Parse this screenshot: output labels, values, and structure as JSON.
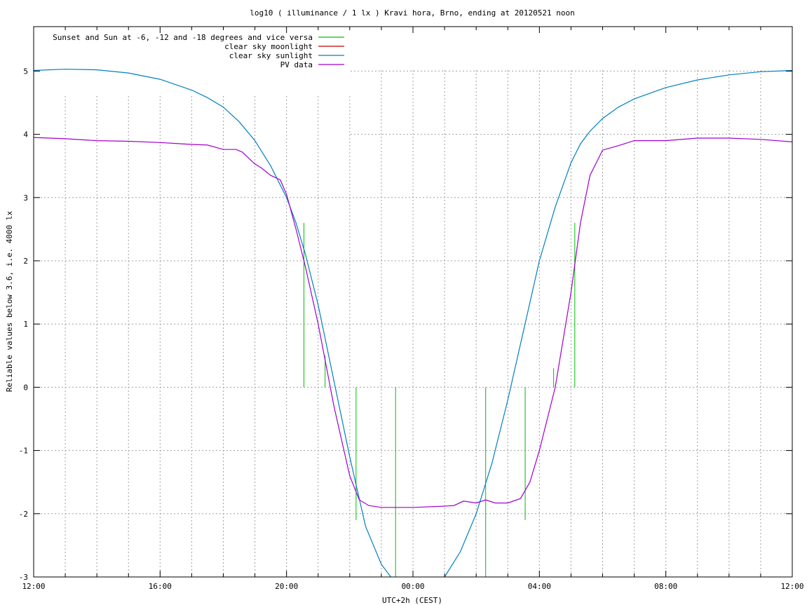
{
  "chart_data": {
    "type": "line",
    "title": "log10 ( illuminance / 1 lx ) Kravi hora, Brno, ending at 20120521 noon",
    "xlabel": "UTC+2h (CEST)",
    "ylabel": "Reliable values below 3.6, i.e. 4000 lx",
    "x_unit": "hours since 12:00 of the previous day",
    "xlim": [
      0,
      24
    ],
    "ylim": [
      -3,
      5.7
    ],
    "y_ticks": [
      -3,
      -2,
      -1,
      0,
      1,
      2,
      3,
      4,
      5
    ],
    "y_tick_labels": [
      "-3",
      "-2",
      "-1",
      "0",
      "1",
      "2",
      "3",
      "4",
      "5"
    ],
    "x_ticks": [
      0,
      4,
      8,
      12,
      16,
      20,
      24
    ],
    "x_tick_labels": [
      "12:00",
      "16:00",
      "20:00",
      "00:00",
      "04:00",
      "08:00",
      "12:00"
    ],
    "x_minor_ticks_hours": 1,
    "grid": true,
    "legend_position": "top-left",
    "legend": [
      {
        "label": "Sunset and Sun at -6, -12 and -18 degrees and vice versa",
        "color": "#00c000"
      },
      {
        "label": "clear sky moonlight",
        "color": "#c00000"
      },
      {
        "label": "clear sky sunlight",
        "color": "#0080c0"
      },
      {
        "label": "PV data",
        "color": "#a000d0"
      }
    ],
    "series": [
      {
        "name": "Sunset and Sun at -6, -12 and -18 degrees and vice versa",
        "type": "impulses",
        "color": "#00c000",
        "x": [
          8.55,
          9.22,
          10.2,
          11.45,
          14.3,
          15.55,
          16.45,
          17.12
        ],
        "y": [
          2.6,
          0.5,
          -2.1,
          -3.0,
          -3.0,
          -2.1,
          0.3,
          2.6
        ]
      },
      {
        "name": "clear sky moonlight",
        "color": "#c00000",
        "x": [],
        "y": []
      },
      {
        "name": "clear sky sunlight",
        "color": "#0080c0",
        "x": [
          0,
          1,
          2,
          3,
          4,
          5,
          5.5,
          6,
          6.5,
          7,
          7.5,
          8,
          8.3,
          8.6,
          9,
          9.5,
          10,
          10.5,
          11,
          11.3,
          11.6,
          12.5,
          13,
          13.5,
          14,
          14.5,
          15,
          15.5,
          16,
          16.5,
          17,
          17.3,
          17.6,
          18,
          18.5,
          19,
          20,
          21,
          22,
          23,
          24
        ],
        "y": [
          5.01,
          5.03,
          5.02,
          4.97,
          4.87,
          4.7,
          4.58,
          4.43,
          4.2,
          3.9,
          3.5,
          3.0,
          2.6,
          2.1,
          1.3,
          0.1,
          -1.1,
          -2.2,
          -2.8,
          -3.0,
          -3.2,
          -3.2,
          -3.0,
          -2.6,
          -2.0,
          -1.2,
          -0.2,
          0.9,
          2.0,
          2.85,
          3.55,
          3.85,
          4.05,
          4.25,
          4.43,
          4.56,
          4.74,
          4.86,
          4.94,
          4.99,
          5.01
        ]
      },
      {
        "name": "PV data",
        "color": "#a000d0",
        "x": [
          0,
          1,
          2,
          3,
          4,
          5,
          5.5,
          6,
          6.4,
          6.6,
          7,
          7.2,
          7.5,
          7.8,
          8,
          8.3,
          8.6,
          9,
          9.5,
          10,
          10.3,
          10.6,
          11,
          12,
          13,
          13.3,
          13.6,
          14,
          14.3,
          14.6,
          15,
          15.4,
          15.7,
          16,
          16.5,
          17,
          17.3,
          17.6,
          18,
          18.5,
          19,
          20,
          21,
          22,
          23,
          24
        ],
        "y": [
          3.95,
          3.93,
          3.9,
          3.89,
          3.87,
          3.84,
          3.83,
          3.76,
          3.76,
          3.72,
          3.53,
          3.47,
          3.35,
          3.28,
          3.05,
          2.5,
          1.9,
          1.0,
          -0.3,
          -1.4,
          -1.78,
          -1.87,
          -1.9,
          -1.9,
          -1.88,
          -1.87,
          -1.8,
          -1.83,
          -1.78,
          -1.83,
          -1.83,
          -1.76,
          -1.5,
          -1.0,
          0.0,
          1.5,
          2.6,
          3.35,
          3.75,
          3.82,
          3.9,
          3.9,
          3.94,
          3.94,
          3.92,
          3.88
        ]
      }
    ]
  }
}
